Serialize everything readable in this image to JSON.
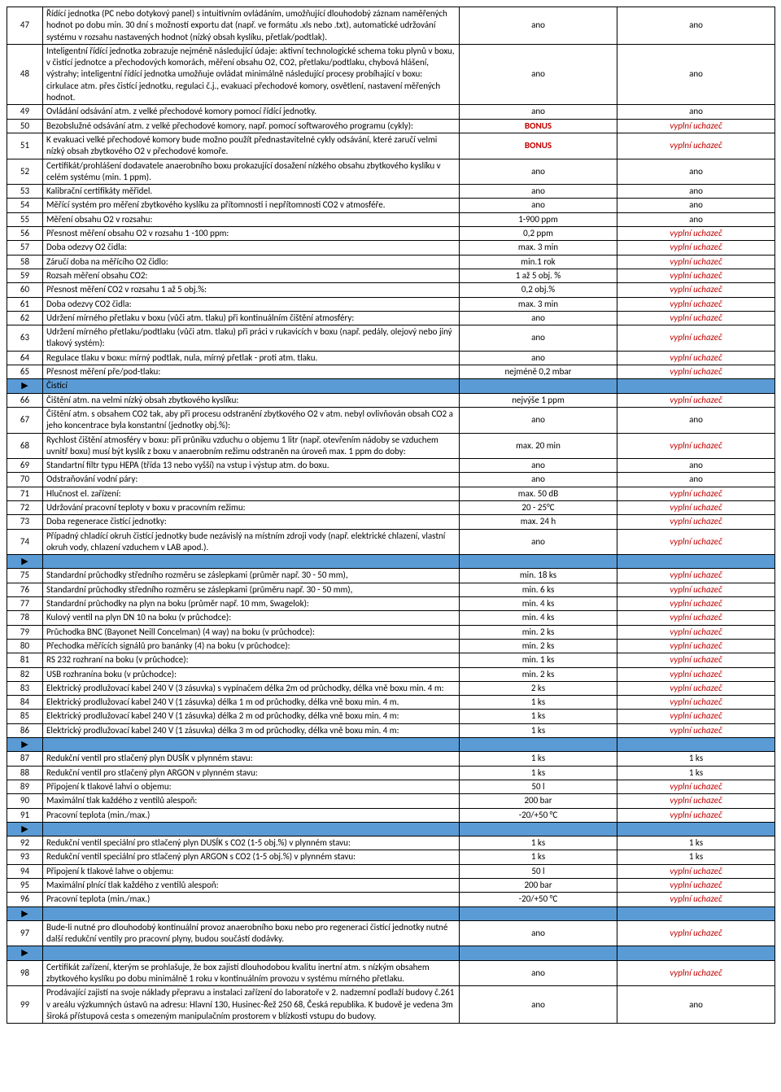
{
  "rows": [
    {
      "type": "row",
      "num": "47",
      "desc": "Řídící jednotka (PC nebo dotykový panel) s intuitivním ovládáním, umožňující dlouhodobý záznam naměřených hodnot po dobu min. 30 dní s možností exportu dat (např. ve formátu .xls nebo .txt), automatické udržování systému v rozsahu nastavených hodnot (nízký obsah kyslíku, přetlak/podtlak).",
      "v1": "ano",
      "v2": "ano"
    },
    {
      "type": "row",
      "num": "48",
      "desc": "Inteligentní řídící jednotka zobrazuje nejméně následující údaje: aktivní technologické schema toku plynů v boxu, v čistící jednotce a přechodových komorách, měření obsahu O2, CO2, přetlaku/podtlaku, chybová hlášení, výstrahy; inteligentní řídící jednotka umožňuje ovládat minimálně následující procesy probíhající v boxu: cirkulace atm. přes čistící jednotku, regulaci č.j., evakuaci přechodové komory, osvětlení, nastavení měřených hodnot.",
      "v1": "ano",
      "v2": "ano"
    },
    {
      "type": "row",
      "num": "49",
      "desc": "Ovládání odsávání atm. z velké přechodové komory pomocí řídící jednotky.",
      "v1": "ano",
      "v2": "ano"
    },
    {
      "type": "row",
      "num": "50",
      "desc": "Bezobslužné odsávání atm. z velké přechodové komory, např. pomocí softwarového programu (cykly):",
      "v1": "BONUS",
      "v1cls": "bonus",
      "v2": "vyplní uchazeč",
      "v2cls": "vyplni"
    },
    {
      "type": "row",
      "num": "51",
      "desc": "K evakuaci velké přechodové komory bude možno použít přednastavitelné cykly odsávání, které zaručí velmi nízký obsah zbytkového O2 v přechodové komoře.",
      "v1": "BONUS",
      "v1cls": "bonus",
      "v2": "vyplní uchazeč",
      "v2cls": "vyplni"
    },
    {
      "type": "row",
      "num": "52",
      "desc": "Certifikát/prohlášení dodavatele anaerobního boxu prokazující dosažení nízkého obsahu zbytkového kyslíku v celém systému (min. 1 ppm).",
      "v1": "ano",
      "v2": "ano"
    },
    {
      "type": "row",
      "num": "53",
      "desc": "Kalibrační certifikáty měřidel.",
      "v1": "ano",
      "v2": "ano"
    },
    {
      "type": "row",
      "num": "54",
      "desc": "Měřící systém pro měření zbytkového kyslíku za přítomnosti i nepřítomnosti CO2 v atmosféře.",
      "v1": "ano",
      "v2": "ano"
    },
    {
      "type": "row",
      "num": "55",
      "desc": "Měření obsahu O2 v rozsahu:",
      "v1": "1-900 ppm",
      "v2": "ano"
    },
    {
      "type": "row",
      "num": "56",
      "desc": "Přesnost měření obsahu O2 v rozsahu 1 -100 ppm:",
      "v1": "0,2 ppm",
      "v2": "vyplní uchazeč",
      "v2cls": "vyplni"
    },
    {
      "type": "row",
      "num": "57",
      "desc": "Doba odezvy O2 čidla:",
      "v1": "max. 3 min",
      "v2": "vyplní uchazeč",
      "v2cls": "vyplni"
    },
    {
      "type": "row",
      "num": "58",
      "desc": "Záručí doba na měřícího O2 čidlo:",
      "v1": "min.1 rok",
      "v2": "vyplní uchazeč",
      "v2cls": "vyplni"
    },
    {
      "type": "row",
      "num": "59",
      "desc": "Rozsah měření obsahu CO2:",
      "v1": "1 až 5 obj. %",
      "v2": "vyplní uchazeč",
      "v2cls": "vyplni"
    },
    {
      "type": "row",
      "num": "60",
      "desc": "Přesnost měření CO2 v rozsahu 1 až 5 obj.%:",
      "v1": "0,2 obj.%",
      "v2": "vyplní uchazeč",
      "v2cls": "vyplni"
    },
    {
      "type": "row",
      "num": "61",
      "desc": "Doba odezvy CO2 čidla:",
      "v1": "max. 3 min",
      "v2": "vyplní uchazeč",
      "v2cls": "vyplni"
    },
    {
      "type": "row",
      "num": "62",
      "desc": "Udržení mírného přetlaku v boxu (vůči atm. tlaku) při kontinuálním čištění atmosféry:",
      "v1": "ano",
      "v2": "vyplní uchazeč",
      "v2cls": "vyplni"
    },
    {
      "type": "row",
      "num": "63",
      "desc": "Udržení mírného přetlaku/podtlaku (vůči atm. tlaku) při práci v rukavicích v boxu (např. pedály, olejový nebo jiný tlakový systém):",
      "v1": "ano",
      "v2": "vyplní uchazeč",
      "v2cls": "vyplni"
    },
    {
      "type": "row",
      "num": "64",
      "desc": "Regulace tlaku v boxu: mírný podtlak, nula, mírný přetlak - proti atm. tlaku.",
      "v1": "ano",
      "v2": "vyplní uchazeč",
      "v2cls": "vyplni"
    },
    {
      "type": "row",
      "num": "65",
      "desc": "Přesnost měření pře/pod-tlaku:",
      "v1": "nejméně 0,2 mbar",
      "v2": "vyplní uchazeč",
      "v2cls": "vyplni"
    },
    {
      "type": "sep",
      "label": "Čistící"
    },
    {
      "type": "row",
      "num": "66",
      "desc": "Čištění atm. na velmi nízký obsah zbytkového kyslíku:",
      "v1": "nejvýše 1 ppm",
      "v2": "vyplní uchazeč",
      "v2cls": "vyplni"
    },
    {
      "type": "row",
      "num": "67",
      "desc": "Čištění atm. s obsahem CO2 tak, aby při procesu odstranění zbytkového O2 v atm. nebyl ovlivňován obsah CO2 a jeho koncentrace byla konstantní (jednotky obj.%):",
      "v1": "ano",
      "v2": "ano"
    },
    {
      "type": "row",
      "num": "68",
      "desc": "Rychlost čištění atmosféry v boxu: při průniku vzduchu o objemu 1 litr (např. otevřením nádoby se vzduchem uvnitř boxu) musí být kyslík z boxu v anaerobním režimu odstraněn na úroveň max. 1 ppm do doby:",
      "v1": "max. 20 min",
      "v2": "vyplní uchazeč",
      "v2cls": "vyplni"
    },
    {
      "type": "row",
      "num": "69",
      "desc": "Standartní filtr typu HEPA (třída 13 nebo vyšší) na vstup i výstup atm. do boxu.",
      "v1": "ano",
      "v2": "ano"
    },
    {
      "type": "row",
      "num": "70",
      "desc": "Odstraňování vodní páry:",
      "v1": "ano",
      "v2": "ano"
    },
    {
      "type": "row",
      "num": "71",
      "desc": "Hlučnost el. zařízení:",
      "v1": "max. 50 dB",
      "v2": "vyplní uchazeč",
      "v2cls": "vyplni"
    },
    {
      "type": "row",
      "num": "72",
      "desc": "Udržování pracovní teploty v boxu v pracovním režimu:",
      "v1": "20 - 25°C",
      "v2": "vyplní uchazeč",
      "v2cls": "vyplni"
    },
    {
      "type": "row",
      "num": "73",
      "desc": "Doba regenerace čistící jednotky:",
      "v1": "max. 24 h",
      "v2": "vyplní uchazeč",
      "v2cls": "vyplni"
    },
    {
      "type": "row",
      "num": "74",
      "desc": "Případný chladící okruh čistící jednotky bude nezávislý na místním zdroji vody (např. elektrické chlazení, vlastní okruh vody, chlazení vzduchem v LAB apod.).",
      "v1": "ano",
      "v2": "vyplní uchazeč",
      "v2cls": "vyplni"
    },
    {
      "type": "sep"
    },
    {
      "type": "row",
      "num": "75",
      "desc": "Standardní průchodky středního rozměru se záslepkami (průměr např. 30 - 50 mm),",
      "v1": "min. 18 ks",
      "v2": "vyplní uchazeč",
      "v2cls": "vyplni"
    },
    {
      "type": "row",
      "num": "76",
      "desc": "Standardní průchodky středního rozměru se záslepkami (průměru např. 30 - 50 mm),",
      "v1": "min. 6 ks",
      "v2": "vyplní uchazeč",
      "v2cls": "vyplni"
    },
    {
      "type": "row",
      "num": "77",
      "desc": "Standardní průchodky na plyn na boku (průměr např. 10 mm, Swagelok):",
      "v1": "min. 4 ks",
      "v2": "vyplní uchazeč",
      "v2cls": "vyplni"
    },
    {
      "type": "row",
      "num": "78",
      "desc": "Kulový ventil na plyn DN 10 na boku (v průchodce):",
      "v1": "min. 4 ks",
      "v2": "vyplní uchazeč",
      "v2cls": "vyplni"
    },
    {
      "type": "row",
      "num": "79",
      "desc": "Průchodka BNC (Bayonet Neill Concelman) (4 way) na boku (v průchodce):",
      "v1": "min. 2 ks",
      "v2": "vyplní uchazeč",
      "v2cls": "vyplni"
    },
    {
      "type": "row",
      "num": "80",
      "desc": "Přechodka měřících signálů pro banánky (4) na boku (v průchodce):",
      "v1": "min. 2 ks",
      "v2": "vyplní uchazeč",
      "v2cls": "vyplni"
    },
    {
      "type": "row",
      "num": "81",
      "desc": "RS 232 rozhraní na boku (v průchodce):",
      "v1": "min. 1 ks",
      "v2": "vyplní uchazeč",
      "v2cls": "vyplni"
    },
    {
      "type": "row",
      "num": "82",
      "desc": "USB rozhranína boku (v průchodce):",
      "v1": "min. 2 ks",
      "v2": "vyplní uchazeč",
      "v2cls": "vyplni"
    },
    {
      "type": "row",
      "num": "83",
      "desc": "Elektrický prodlužovací kabel 240 V (3 zásuvka) s vypínačem délka 2m od průchodky, délka vně boxu min. 4 m:",
      "v1": "2 ks",
      "v2": "vyplní uchazeč",
      "v2cls": "vyplni"
    },
    {
      "type": "row",
      "num": "84",
      "desc": "Elektrický prodlužovací kabel 240 V (1 zásuvka) délka 1 m od průchodky, délka vně boxu min. 4 m.",
      "v1": "1 ks",
      "v2": "vyplní uchazeč",
      "v2cls": "vyplni"
    },
    {
      "type": "row",
      "num": "85",
      "desc": "Elektrický prodlužovací kabel 240 V (1 zásuvka) délka 2 m od průchodky, délka vně boxu min. 4 m:",
      "v1": "1 ks",
      "v2": "vyplní uchazeč",
      "v2cls": "vyplni"
    },
    {
      "type": "row",
      "num": "86",
      "desc": "Elektrický prodlužovací kabel 240 V (1 zásuvka) délka 3 m od průchodky, délka vně boxu min. 4 m:",
      "v1": "1 ks",
      "v2": "vyplní uchazeč",
      "v2cls": "vyplni"
    },
    {
      "type": "sep"
    },
    {
      "type": "row",
      "num": "87",
      "desc": "Redukční ventil pro stlačený plyn DUSÍK v plynném stavu:",
      "v1": "1 ks",
      "v2": "1 ks"
    },
    {
      "type": "row",
      "num": "88",
      "desc": "Redukční ventil pro stlačený plyn ARGON v plynném stavu:",
      "v1": "1 ks",
      "v2": "1 ks"
    },
    {
      "type": "row",
      "num": "89",
      "desc": "Připojení k tlakové lahvi o objemu:",
      "v1": "50 l",
      "v2": "vyplní uchazeč",
      "v2cls": "vyplni"
    },
    {
      "type": "row",
      "num": "90",
      "desc": "Maximální tlak každého z ventilů alespoň:",
      "v1": "200 bar",
      "v2": "vyplní uchazeč",
      "v2cls": "vyplni"
    },
    {
      "type": "row",
      "num": "91",
      "desc": "Pracovní teplota (min./max.)",
      "v1": "-20/+50 °C",
      "v2": "vyplní uchazeč",
      "v2cls": "vyplni"
    },
    {
      "type": "sep"
    },
    {
      "type": "row",
      "num": "92",
      "desc": "Redukční ventil speciální pro stlačený plyn DUSÍK s CO2 (1-5 obj.%) v plynném stavu:",
      "v1": "1 ks",
      "v2": "1 ks"
    },
    {
      "type": "row",
      "num": "93",
      "desc": "Redukční ventil speciální pro stlačený plyn ARGON s CO2 (1-5 obj.%) v plynném stavu:",
      "v1": "1 ks",
      "v2": "1 ks"
    },
    {
      "type": "row",
      "num": "94",
      "desc": "Připojení k tlakové lahve o objemu:",
      "v1": "50 l",
      "v2": "vyplní uchazeč",
      "v2cls": "vyplni"
    },
    {
      "type": "row",
      "num": "95",
      "desc": "Maximální plnící tlak každého z ventilů alespoň:",
      "v1": "200 bar",
      "v2": "vyplní uchazeč",
      "v2cls": "vyplni"
    },
    {
      "type": "row",
      "num": "96",
      "desc": "Pracovní teplota (min./max.)",
      "v1": "-20/+50 °C",
      "v2": "vyplní uchazeč",
      "v2cls": "vyplni"
    },
    {
      "type": "sep"
    },
    {
      "type": "row",
      "num": "97",
      "desc": "Bude-li nutné pro dlouhodobý kontinuální provoz anaerobního boxu nebo pro regeneraci čistící jednotky nutné další redukční ventily pro pracovní plyny, budou součástí dodávky.",
      "v1": "ano",
      "v2": "vyplní uchazeč",
      "v2cls": "vyplni"
    },
    {
      "type": "sep"
    },
    {
      "type": "row",
      "num": "98",
      "desc": "Certifikát zařízení, kterým se prohlašuje, že box zajistí dlouhodobou kvalitu inertní atm. s nízkým obsahem zbytkového kyslíku po dobu minimálně 1 roku v kontinuálním provozu v systému mírného přetlaku.",
      "v1": "ano",
      "v2": "vyplní uchazeč",
      "v2cls": "vyplni"
    },
    {
      "type": "row",
      "num": "99",
      "desc": "Prodávající zajistí na svoje náklady přepravu a instalaci zařízení do laboratoře v 2. nadzemní podlaží budovy č.261 v areálu výzkumných ústavů na adresu: Hlavní 130, Husinec-Řež 250 68, Česká republika. K budově je vedena 3m široká přístupová cesta s omezeným manipulačním prostorem v blízkosti vstupu do budovy.",
      "v1": "ano",
      "v2": "ano"
    }
  ],
  "markerChar": "▶"
}
